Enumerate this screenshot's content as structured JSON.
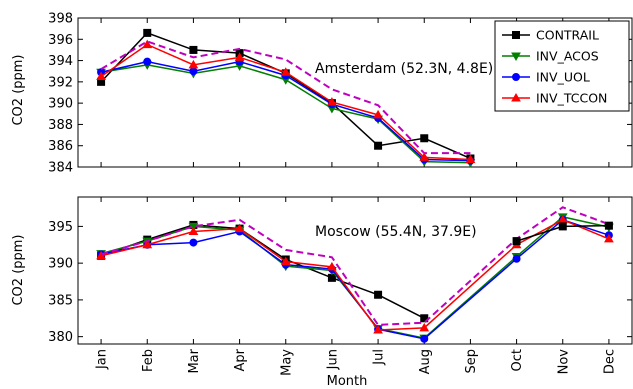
{
  "figure": {
    "xlabel": "Month",
    "ylabel": "CO2 (ppm)",
    "months": [
      "Jan",
      "Feb",
      "Mar",
      "Apr",
      "May",
      "Jun",
      "Jul",
      "Aug",
      "Sep",
      "Oct",
      "Nov",
      "Dec"
    ]
  },
  "legend": {
    "placement": "top-right of upper panel",
    "entries": [
      {
        "name": "CONTRAIL",
        "color": "#000000",
        "marker": "square",
        "dash": "solid"
      },
      {
        "name": "INV_ACOS",
        "color": "#007f00",
        "marker": "triangle-down",
        "dash": "solid"
      },
      {
        "name": "INV_UOL",
        "color": "#0000ff",
        "marker": "circle",
        "dash": "solid"
      },
      {
        "name": "INV_TCCON",
        "color": "#ff0000",
        "marker": "triangle-up",
        "dash": "solid"
      }
    ]
  },
  "chart_data": [
    {
      "type": "line",
      "title": "Amsterdam (52.3N, 4.8E)",
      "xlabel": "",
      "ylabel": "CO2 (ppm)",
      "ylim": [
        384,
        398
      ],
      "yticks": [
        384,
        386,
        388,
        390,
        392,
        394,
        396,
        398
      ],
      "show_xtick_labels": false,
      "grid": false,
      "series": [
        {
          "name": "CONTRAIL",
          "color": "#000000",
          "marker": "square",
          "dash": "solid",
          "x": [
            1,
            2,
            3,
            4,
            5,
            6,
            7,
            8,
            9
          ],
          "values": [
            392.0,
            396.6,
            395.0,
            394.7,
            392.8,
            390.0,
            386.0,
            386.7,
            384.8
          ]
        },
        {
          "name": "INV_ACOS",
          "color": "#007f00",
          "marker": "triangle-down",
          "dash": "solid",
          "x": [
            1,
            2,
            3,
            4,
            5,
            6,
            7,
            8,
            9
          ],
          "values": [
            392.9,
            393.6,
            392.8,
            393.5,
            392.2,
            389.5,
            388.5,
            384.5,
            384.4
          ]
        },
        {
          "name": "INV_UOL",
          "color": "#0000ff",
          "marker": "circle",
          "dash": "solid",
          "x": [
            1,
            2,
            3,
            4,
            5,
            6,
            7,
            8,
            9
          ],
          "values": [
            392.9,
            393.9,
            393.0,
            393.9,
            392.6,
            389.9,
            388.6,
            384.7,
            384.6
          ]
        },
        {
          "name": "INV_TCCON",
          "color": "#ff0000",
          "marker": "triangle-up",
          "dash": "solid",
          "x": [
            1,
            2,
            3,
            4,
            5,
            6,
            7,
            8,
            9
          ],
          "values": [
            392.5,
            395.5,
            393.6,
            394.3,
            392.9,
            390.1,
            388.9,
            384.9,
            384.7
          ]
        },
        {
          "name": "",
          "color": "#bf00bf",
          "marker": "none",
          "dash": "dashed",
          "x": [
            1,
            2,
            3,
            4,
            5,
            6,
            7,
            8,
            9
          ],
          "values": [
            393.2,
            395.8,
            394.3,
            395.1,
            394.1,
            391.3,
            389.8,
            385.3,
            385.3
          ]
        }
      ]
    },
    {
      "type": "line",
      "title": "Moscow (55.4N, 37.9E)",
      "xlabel": "Month",
      "ylabel": "CO2 (ppm)",
      "ylim": [
        379,
        399
      ],
      "yticks": [
        380,
        385,
        390,
        395
      ],
      "show_xtick_labels": true,
      "grid": false,
      "series": [
        {
          "name": "CONTRAIL",
          "color": "#000000",
          "marker": "square",
          "dash": "solid",
          "x": [
            1,
            2,
            3,
            4,
            5,
            6,
            7,
            8
          ],
          "values": [
            391.0,
            393.2,
            395.2,
            394.7,
            390.5,
            388.0,
            385.7,
            382.5
          ]
        },
        {
          "name": "INV_ACOS",
          "color": "#007f00",
          "marker": "triangle-down",
          "dash": "solid",
          "x": [
            1,
            2,
            3,
            4,
            5,
            6,
            7,
            8,
            10,
            11,
            12
          ],
          "values": [
            391.3,
            393.0,
            395.0,
            394.5,
            389.6,
            389.0,
            381.1,
            379.8,
            390.9,
            396.3,
            394.9
          ]
        },
        {
          "name": "INV_UOL",
          "color": "#0000ff",
          "marker": "circle",
          "dash": "solid",
          "x": [
            1,
            2,
            3,
            4,
            5,
            6,
            7,
            8,
            10,
            11,
            12
          ],
          "values": [
            391.2,
            392.5,
            392.8,
            394.3,
            389.8,
            389.2,
            381.0,
            379.7,
            390.6,
            395.9,
            393.8
          ]
        },
        {
          "name": "INV_TCCON",
          "color": "#ff0000",
          "marker": "triangle-up",
          "dash": "solid",
          "x": [
            1,
            2,
            3,
            4,
            5,
            6,
            7,
            8,
            10,
            11,
            12
          ],
          "values": [
            391.0,
            392.5,
            394.3,
            394.7,
            390.2,
            389.5,
            380.9,
            381.2,
            392.5,
            395.9,
            393.3
          ]
        },
        {
          "name": "",
          "color": "#bf00bf",
          "marker": "none",
          "dash": "dashed",
          "x": [
            1,
            2,
            3,
            4,
            5,
            6,
            7,
            8,
            10,
            11,
            12
          ],
          "values": [
            391.2,
            393.0,
            395.0,
            395.9,
            391.8,
            390.8,
            381.6,
            381.9,
            393.3,
            397.6,
            395.3
          ]
        },
        {
          "name": "",
          "color": "#000000",
          "marker": "square",
          "dash": "solid",
          "x": [
            10,
            11,
            12
          ],
          "values": [
            393.0,
            395.0,
            395.1
          ]
        }
      ]
    }
  ]
}
